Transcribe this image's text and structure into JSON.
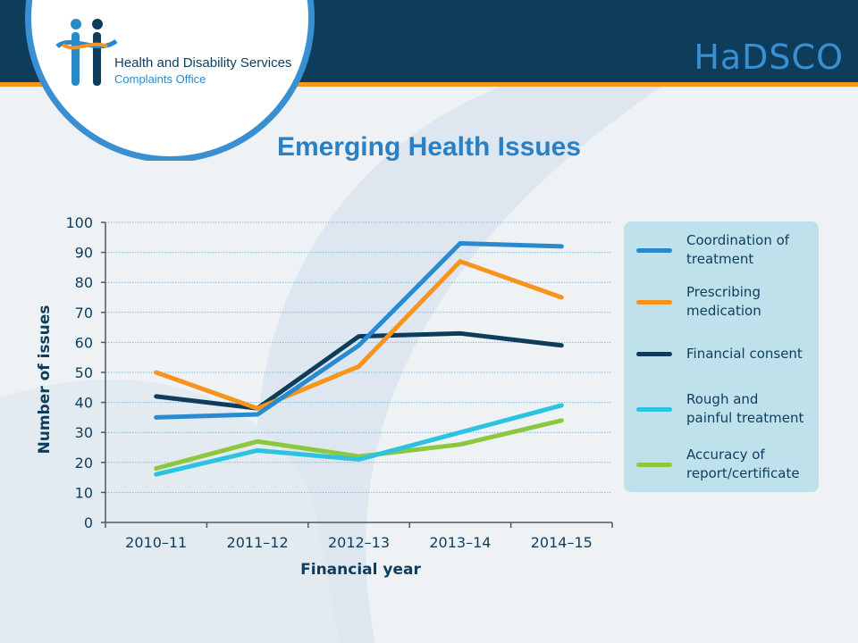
{
  "header": {
    "brand": "HaDSCO",
    "logo_line1": "Health and Disability Services",
    "logo_line2": "Complaints Office"
  },
  "page_title": "Emerging Health Issues",
  "colors": {
    "header_bg": "#0e3d5c",
    "accent_orange": "#f7941d",
    "brand_blue": "#3a8fd1",
    "legend_bg": "#bfe1ec"
  },
  "chart_data": {
    "type": "line",
    "title": "",
    "xlabel": "Financial year",
    "ylabel": "Number of issues",
    "categories": [
      "2010–11",
      "2011–12",
      "2012–13",
      "2013–14",
      "2014–15"
    ],
    "ylim": [
      0,
      100
    ],
    "yticks": [
      0,
      10,
      20,
      30,
      40,
      50,
      60,
      70,
      80,
      90,
      100
    ],
    "grid": true,
    "legend_position": "right",
    "series": [
      {
        "name": "Coordination of treatment",
        "label_lines": [
          "Coordination of",
          "treatment"
        ],
        "color": "#2a8ad0",
        "values": [
          35,
          36,
          59,
          93,
          92
        ]
      },
      {
        "name": "Prescribing medication",
        "label_lines": [
          "Prescribing",
          "medication"
        ],
        "color": "#f7941d",
        "values": [
          50,
          38,
          52,
          87,
          75
        ]
      },
      {
        "name": "Financial consent",
        "label_lines": [
          "Financial consent"
        ],
        "color": "#0e3d5c",
        "values": [
          42,
          38,
          62,
          63,
          59
        ]
      },
      {
        "name": "Rough and painful treatment",
        "label_lines": [
          "Rough and",
          "painful treatment"
        ],
        "color": "#2cc3e0",
        "values": [
          16,
          24,
          21,
          30,
          39
        ]
      },
      {
        "name": "Accuracy of report/certificate",
        "label_lines": [
          "Accuracy of",
          "report/certificate"
        ],
        "color": "#8dc63f",
        "values": [
          18,
          27,
          22,
          26,
          34
        ]
      }
    ]
  }
}
